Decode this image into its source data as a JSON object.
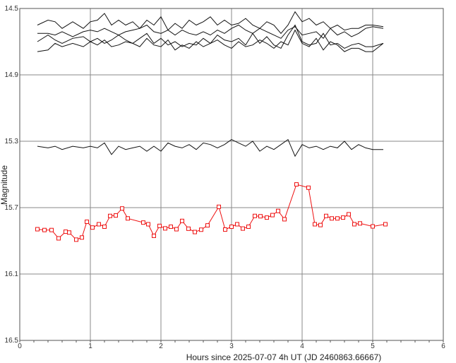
{
  "chart_data": {
    "type": "line",
    "xlabel": "Hours since 2025-07-07 4h UT (JD 2460863.66667)",
    "ylabel": "Magnitude",
    "xlim": [
      0,
      6
    ],
    "ylim": [
      14.5,
      16.5
    ],
    "y_inverted": true,
    "grid": true,
    "x_ticks": [
      "0",
      "1",
      "2",
      "3",
      "4",
      "5",
      "6"
    ],
    "y_ticks": [
      "14.5",
      "14.9",
      "15.3",
      "15.7",
      "16.1",
      "16.5"
    ],
    "colors": {
      "target": "#ee1111",
      "comparison": "#111111",
      "grid": "#888888",
      "axis": "#555555"
    },
    "series": [
      {
        "role": "comparison",
        "x": [
          0.25,
          0.4,
          0.5,
          0.6,
          0.75,
          0.9,
          1.0,
          1.1,
          1.2,
          1.3,
          1.4,
          1.5,
          1.6,
          1.7,
          1.8,
          1.9,
          2.0,
          2.1,
          2.2,
          2.3,
          2.4,
          2.5,
          2.6,
          2.7,
          2.8,
          2.9,
          3.0,
          3.1,
          3.2,
          3.3,
          3.4,
          3.5,
          3.6,
          3.7,
          3.8,
          3.9,
          4.0,
          4.1,
          4.2,
          4.3,
          4.4,
          4.5,
          4.6,
          4.7,
          4.8,
          4.9,
          5.0,
          5.15
        ],
        "values": [
          14.6,
          14.57,
          14.58,
          14.62,
          14.58,
          14.62,
          14.58,
          14.57,
          14.53,
          14.6,
          14.57,
          14.6,
          14.58,
          14.62,
          14.57,
          14.6,
          14.55,
          14.63,
          14.59,
          14.62,
          14.57,
          14.6,
          14.58,
          14.55,
          14.6,
          14.57,
          14.6,
          14.59,
          14.56,
          14.6,
          14.62,
          14.58,
          14.6,
          14.65,
          14.6,
          14.52,
          14.58,
          14.56,
          14.6,
          14.58,
          14.62,
          14.6,
          14.63,
          14.62,
          14.62,
          14.6,
          14.6,
          14.61
        ]
      },
      {
        "role": "comparison",
        "x": [
          0.25,
          0.4,
          0.5,
          0.6,
          0.75,
          0.9,
          1.0,
          1.1,
          1.2,
          1.3,
          1.4,
          1.5,
          1.6,
          1.7,
          1.8,
          1.9,
          2.0,
          2.1,
          2.2,
          2.3,
          2.4,
          2.5,
          2.6,
          2.7,
          2.8,
          2.9,
          3.0,
          3.1,
          3.2,
          3.3,
          3.4,
          3.5,
          3.6,
          3.7,
          3.8,
          3.9,
          4.0,
          4.1,
          4.2,
          4.3,
          4.4,
          4.5,
          4.6,
          4.7,
          4.8,
          4.9,
          5.0,
          5.15
        ],
        "values": [
          14.65,
          14.65,
          14.66,
          14.64,
          14.67,
          14.64,
          14.63,
          14.64,
          14.62,
          14.64,
          14.66,
          14.64,
          14.63,
          14.62,
          14.6,
          14.64,
          14.65,
          14.63,
          14.66,
          14.63,
          14.65,
          14.66,
          14.64,
          14.66,
          14.63,
          14.65,
          14.62,
          14.6,
          14.63,
          14.65,
          14.62,
          14.64,
          14.66,
          14.68,
          14.63,
          14.61,
          14.66,
          14.65,
          14.64,
          14.68,
          14.62,
          14.66,
          14.64,
          14.67,
          14.65,
          14.62,
          14.61,
          14.62
        ]
      },
      {
        "role": "comparison",
        "x": [
          0.25,
          0.4,
          0.5,
          0.6,
          0.75,
          0.9,
          1.0,
          1.1,
          1.2,
          1.3,
          1.4,
          1.5,
          1.6,
          1.7,
          1.8,
          1.9,
          2.0,
          2.1,
          2.2,
          2.3,
          2.4,
          2.5,
          2.6,
          2.7,
          2.8,
          2.9,
          3.0,
          3.1,
          3.2,
          3.3,
          3.4,
          3.5,
          3.6,
          3.7,
          3.8,
          3.9,
          4.0,
          4.1,
          4.2,
          4.3,
          4.4,
          4.5,
          4.6,
          4.7,
          4.8,
          4.9,
          5.0,
          5.15
        ],
        "values": [
          14.7,
          14.66,
          14.69,
          14.71,
          14.68,
          14.67,
          14.7,
          14.68,
          14.71,
          14.69,
          14.66,
          14.69,
          14.71,
          14.68,
          14.65,
          14.71,
          14.68,
          14.72,
          14.7,
          14.73,
          14.71,
          14.72,
          14.68,
          14.71,
          14.66,
          14.69,
          14.7,
          14.68,
          14.72,
          14.65,
          14.71,
          14.67,
          14.72,
          14.74,
          14.66,
          14.6,
          14.7,
          14.72,
          14.71,
          14.65,
          14.72,
          14.71,
          14.74,
          14.72,
          14.71,
          14.73,
          14.73,
          14.71
        ]
      },
      {
        "role": "comparison",
        "x": [
          0.25,
          0.4,
          0.5,
          0.6,
          0.75,
          0.9,
          1.0,
          1.1,
          1.2,
          1.3,
          1.4,
          1.5,
          1.6,
          1.7,
          1.8,
          1.9,
          2.0,
          2.1,
          2.2,
          2.3,
          2.4,
          2.5,
          2.6,
          2.7,
          2.8,
          2.9,
          3.0,
          3.1,
          3.2,
          3.3,
          3.4,
          3.5,
          3.6,
          3.7,
          3.8,
          3.9,
          4.0,
          4.1,
          4.2,
          4.3,
          4.4,
          4.5,
          4.6,
          4.7,
          4.8,
          4.9,
          5.0,
          5.15
        ],
        "values": [
          14.76,
          14.75,
          14.71,
          14.73,
          14.71,
          14.73,
          14.7,
          14.72,
          14.69,
          14.73,
          14.72,
          14.7,
          14.71,
          14.73,
          14.68,
          14.72,
          14.73,
          14.69,
          14.75,
          14.72,
          14.74,
          14.7,
          14.73,
          14.71,
          14.69,
          14.72,
          14.74,
          14.7,
          14.73,
          14.72,
          14.69,
          14.71,
          14.74,
          14.7,
          14.72,
          14.63,
          14.71,
          14.73,
          14.68,
          14.75,
          14.7,
          14.72,
          14.76,
          14.74,
          14.74,
          14.76,
          14.76,
          14.71
        ]
      },
      {
        "role": "comparison",
        "x": [
          0.25,
          0.4,
          0.5,
          0.6,
          0.75,
          0.9,
          1.0,
          1.1,
          1.2,
          1.3,
          1.4,
          1.5,
          1.6,
          1.7,
          1.8,
          1.9,
          2.0,
          2.1,
          2.2,
          2.3,
          2.4,
          2.5,
          2.6,
          2.7,
          2.8,
          2.9,
          3.0,
          3.1,
          3.2,
          3.3,
          3.4,
          3.5,
          3.6,
          3.7,
          3.8,
          3.9,
          4.0,
          4.1,
          4.2,
          4.3,
          4.4,
          4.5,
          4.6,
          4.7,
          4.8,
          4.9,
          5.0,
          5.15
        ],
        "values": [
          15.33,
          15.34,
          15.33,
          15.35,
          15.33,
          15.34,
          15.33,
          15.34,
          15.31,
          15.38,
          15.33,
          15.35,
          15.34,
          15.33,
          15.36,
          15.33,
          15.36,
          15.31,
          15.33,
          15.34,
          15.32,
          15.35,
          15.31,
          15.32,
          15.34,
          15.32,
          15.29,
          15.31,
          15.33,
          15.3,
          15.36,
          15.33,
          15.35,
          15.32,
          15.29,
          15.39,
          15.32,
          15.34,
          15.33,
          15.35,
          15.33,
          15.34,
          15.3,
          15.35,
          15.32,
          15.34,
          15.35,
          15.35
        ]
      },
      {
        "role": "target",
        "markers": "square",
        "x": [
          0.25,
          0.35,
          0.45,
          0.55,
          0.65,
          0.7,
          0.8,
          0.88,
          0.95,
          1.03,
          1.12,
          1.2,
          1.28,
          1.36,
          1.45,
          1.53,
          1.75,
          1.82,
          1.9,
          1.98,
          2.06,
          2.14,
          2.22,
          2.3,
          2.39,
          2.48,
          2.57,
          2.66,
          2.82,
          2.91,
          3.0,
          3.08,
          3.16,
          3.24,
          3.33,
          3.41,
          3.5,
          3.58,
          3.66,
          3.75,
          3.92,
          4.09,
          4.18,
          4.26,
          4.34,
          4.42,
          4.5,
          4.58,
          4.66,
          4.74,
          4.82,
          5.0,
          5.18
        ],
        "values": [
          15.83,
          15.835,
          15.835,
          15.885,
          15.845,
          15.85,
          15.893,
          15.88,
          15.785,
          15.82,
          15.8,
          15.815,
          15.75,
          15.747,
          15.705,
          15.765,
          15.79,
          15.8,
          15.87,
          15.81,
          15.825,
          15.815,
          15.83,
          15.78,
          15.827,
          15.847,
          15.833,
          15.807,
          15.695,
          15.832,
          15.815,
          15.8,
          15.826,
          15.815,
          15.75,
          15.752,
          15.76,
          15.745,
          15.72,
          15.77,
          15.56,
          15.58,
          15.8,
          15.805,
          15.75,
          15.765,
          15.765,
          15.76,
          15.74,
          15.8,
          15.795,
          15.813,
          15.8
        ]
      }
    ]
  }
}
